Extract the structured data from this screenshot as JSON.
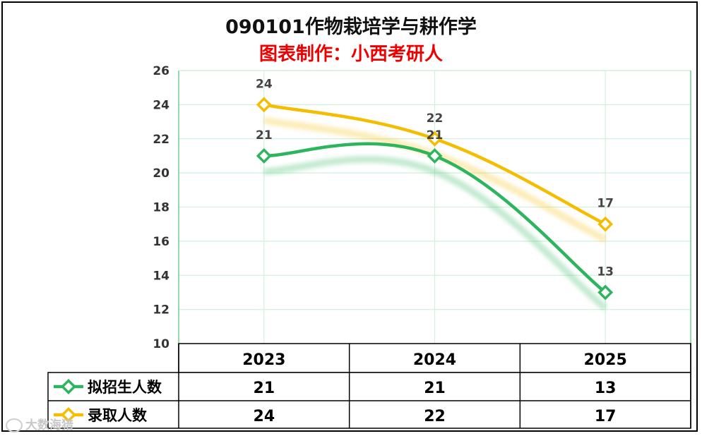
{
  "title": "090101作物栽培学与耕作学",
  "subtitle": "图表制作：小西考研人",
  "watermark": "大数海猎",
  "chart_data": {
    "type": "line",
    "title": "090101作物栽培学与耕作学",
    "subtitle": "图表制作：小西考研人",
    "categories": [
      "2023",
      "2024",
      "2025"
    ],
    "ylim": [
      10,
      26
    ],
    "yticks": [
      10,
      12,
      14,
      16,
      18,
      20,
      22,
      24,
      26
    ],
    "grid": true,
    "series": [
      {
        "name": "拟招生人数",
        "values": [
          21,
          21,
          13
        ],
        "color": "#2db55d"
      },
      {
        "name": "录取人数",
        "values": [
          24,
          22,
          17
        ],
        "color": "#f5bd00"
      }
    ],
    "legend": "data-table-left"
  }
}
